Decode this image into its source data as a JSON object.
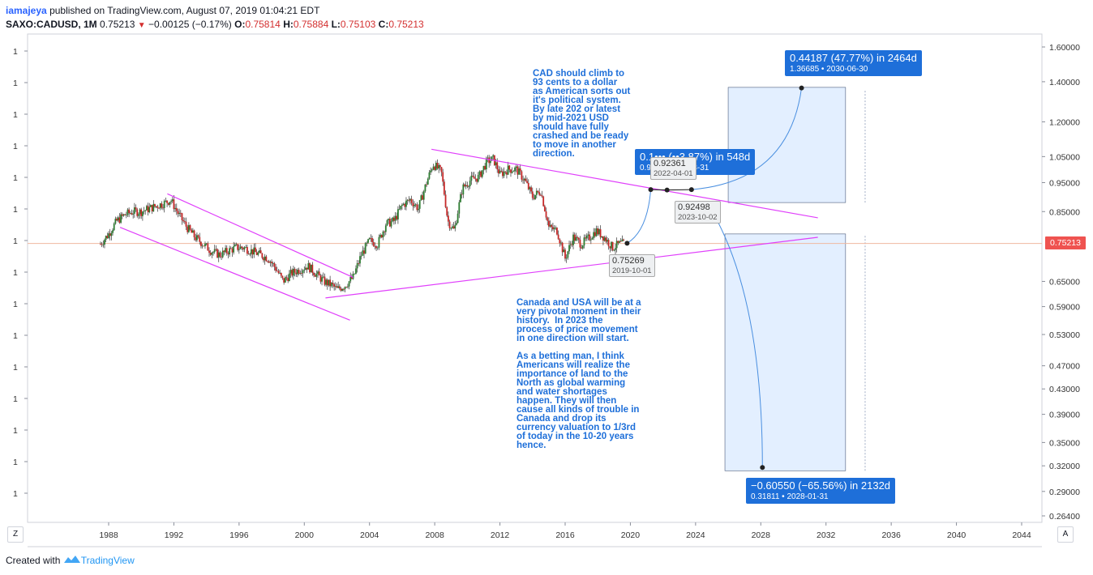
{
  "header": {
    "user": "iamajeya",
    "published": "published on TradingView.com, August 07, 2019 01:04:21 EDT",
    "symbol": "SAXO:CADUSD, 1M",
    "last": "0.75213",
    "change": "−0.00125 (−0.17%)",
    "o_label": "O:",
    "o_value": "0.75814",
    "h_label": "H:",
    "h_value": "0.75884",
    "l_label": "L:",
    "l_value": "0.75103",
    "c_label": "C:",
    "c_value": "0.75213"
  },
  "footer": {
    "created": "Created with",
    "brand": "TradingView"
  },
  "buttons": {
    "z": "Z",
    "a": "A"
  },
  "current_price_tag": "0.75213",
  "notes": {
    "top": "CAD should climb to\n93 cents to a dollar\nas American sorts out\nit's political system.\nBy late 202 or latest\nby mid-2021 USD\nshould have fully\ncrashed and be ready\nto move in another\ndirection.",
    "bottom": "Canada and USA will be at a\nvery pivotal moment in their\nhistory.  In 2023 the\nprocess of price movement\nin one direction will start.\n\nAs a betting man, I think\nAmericans will realize the\nimportance of land to the\nNorth as global warming\nand water shortages\nhappen. They will then\ncause all kinds of trouble in\nCanada and drop its\ncurrency valuation to 1/3rd\nof today in the 10-20 years\nhence."
  },
  "measures": {
    "up_long": {
      "line1": "0.44187 (47.77%) in 2464d",
      "line2": "1.36685  •  2030-06-30"
    },
    "up_short": {
      "line1": "0.1••• (••3.87%) in 548d",
      "line2": "0.9•••••  2021-03-31"
    },
    "down": {
      "line1": "−0.60550 (−65.56%) in 2132d",
      "line2": "0.31811  •  2028-01-31"
    }
  },
  "point_labels": {
    "p1": {
      "value": "0.92361",
      "date": "2022-04-01"
    },
    "p2": {
      "value": "0.92498",
      "date": "2023-10-02"
    },
    "p3": {
      "value": "0.75269",
      "date": "2019-10-01"
    }
  },
  "chart_data": {
    "type": "candlestick",
    "symbol": "SAXO:CADUSD",
    "interval": "1M",
    "y_scale": "log",
    "y_range": [
      0.25,
      1.72
    ],
    "x_range": [
      "1986-01",
      "2045-01"
    ],
    "x_ticks": [
      "1988",
      "1992",
      "1996",
      "2000",
      "2004",
      "2008",
      "2012",
      "2016",
      "2020",
      "2024",
      "2028",
      "2032",
      "2036",
      "2040",
      "2044"
    ],
    "y_ticks": [
      "1.60000",
      "1.40000",
      "1.20000",
      "1.05000",
      "0.95000",
      "0.85000",
      "0.75213",
      "0.65000",
      "0.59000",
      "0.53000",
      "0.47000",
      "0.43000",
      "0.39000",
      "0.35000",
      "0.32000",
      "0.29000",
      "0.26400"
    ],
    "left_axis_labels": [
      "1",
      "1",
      "1",
      "1",
      "1",
      "1",
      "1",
      "1",
      "1",
      "1",
      "1",
      "1",
      "1",
      "1",
      "1"
    ],
    "price_path": [
      {
        "t": 1987.5,
        "p": 0.75
      },
      {
        "t": 1988.0,
        "p": 0.78
      },
      {
        "t": 1988.5,
        "p": 0.82
      },
      {
        "t": 1989.0,
        "p": 0.84
      },
      {
        "t": 1989.5,
        "p": 0.85
      },
      {
        "t": 1990.0,
        "p": 0.85
      },
      {
        "t": 1990.5,
        "p": 0.86
      },
      {
        "t": 1991.0,
        "p": 0.87
      },
      {
        "t": 1991.5,
        "p": 0.88
      },
      {
        "t": 1991.8,
        "p": 0.89
      },
      {
        "t": 1992.3,
        "p": 0.84
      },
      {
        "t": 1992.8,
        "p": 0.8
      },
      {
        "t": 1993.3,
        "p": 0.77
      },
      {
        "t": 1993.8,
        "p": 0.75
      },
      {
        "t": 1994.3,
        "p": 0.73
      },
      {
        "t": 1994.8,
        "p": 0.72
      },
      {
        "t": 1995.3,
        "p": 0.73
      },
      {
        "t": 1995.8,
        "p": 0.74
      },
      {
        "t": 1996.3,
        "p": 0.74
      },
      {
        "t": 1996.8,
        "p": 0.73
      },
      {
        "t": 1997.3,
        "p": 0.72
      },
      {
        "t": 1997.8,
        "p": 0.71
      },
      {
        "t": 1998.3,
        "p": 0.68
      },
      {
        "t": 1998.7,
        "p": 0.65
      },
      {
        "t": 1999.2,
        "p": 0.67
      },
      {
        "t": 1999.7,
        "p": 0.68
      },
      {
        "t": 2000.2,
        "p": 0.69
      },
      {
        "t": 2000.7,
        "p": 0.67
      },
      {
        "t": 2001.2,
        "p": 0.65
      },
      {
        "t": 2001.7,
        "p": 0.64
      },
      {
        "t": 2002.0,
        "p": 0.63
      },
      {
        "t": 2002.5,
        "p": 0.64
      },
      {
        "t": 2003.0,
        "p": 0.66
      },
      {
        "t": 2003.5,
        "p": 0.72
      },
      {
        "t": 2004.0,
        "p": 0.76
      },
      {
        "t": 2004.5,
        "p": 0.75
      },
      {
        "t": 2005.0,
        "p": 0.81
      },
      {
        "t": 2005.5,
        "p": 0.82
      },
      {
        "t": 2006.0,
        "p": 0.87
      },
      {
        "t": 2006.5,
        "p": 0.89
      },
      {
        "t": 2007.0,
        "p": 0.86
      },
      {
        "t": 2007.5,
        "p": 0.95
      },
      {
        "t": 2007.9,
        "p": 1.02
      },
      {
        "t": 2008.4,
        "p": 0.99
      },
      {
        "t": 2008.8,
        "p": 0.82
      },
      {
        "t": 2009.2,
        "p": 0.79
      },
      {
        "t": 2009.7,
        "p": 0.93
      },
      {
        "t": 2010.2,
        "p": 0.96
      },
      {
        "t": 2010.7,
        "p": 0.97
      },
      {
        "t": 2011.2,
        "p": 1.03
      },
      {
        "t": 2011.6,
        "p": 1.04
      },
      {
        "t": 2012.0,
        "p": 0.98
      },
      {
        "t": 2012.5,
        "p": 1.0
      },
      {
        "t": 2013.0,
        "p": 1.0
      },
      {
        "t": 2013.5,
        "p": 0.96
      },
      {
        "t": 2014.0,
        "p": 0.9
      },
      {
        "t": 2014.5,
        "p": 0.92
      },
      {
        "t": 2015.0,
        "p": 0.8
      },
      {
        "t": 2015.5,
        "p": 0.79
      },
      {
        "t": 2016.0,
        "p": 0.71
      },
      {
        "t": 2016.5,
        "p": 0.77
      },
      {
        "t": 2017.0,
        "p": 0.75
      },
      {
        "t": 2017.5,
        "p": 0.77
      },
      {
        "t": 2017.9,
        "p": 0.79
      },
      {
        "t": 2018.4,
        "p": 0.77
      },
      {
        "t": 2018.9,
        "p": 0.74
      },
      {
        "t": 2019.3,
        "p": 0.75
      },
      {
        "t": 2019.6,
        "p": 0.752
      }
    ],
    "annotations": {
      "triangle_upper": [
        {
          "t": 2007.8,
          "p": 1.08
        },
        {
          "t": 2031.5,
          "p": 0.83
        }
      ],
      "triangle_lower": [
        {
          "t": 2001.3,
          "p": 0.61
        },
        {
          "t": 2031.5,
          "p": 0.77
        }
      ],
      "channel_upper": [
        {
          "t": 1991.6,
          "p": 0.91
        },
        {
          "t": 2003.0,
          "p": 0.66
        }
      ],
      "channel_lower": [
        {
          "t": 1988.7,
          "p": 0.8
        },
        {
          "t": 2002.8,
          "p": 0.56
        }
      ],
      "path_points": [
        {
          "t": 2019.8,
          "p": 0.7527
        },
        {
          "t": 2021.25,
          "p": 0.925
        },
        {
          "t": 2022.25,
          "p": 0.9236
        },
        {
          "t": 2023.75,
          "p": 0.925
        },
        {
          "t": 2028.1,
          "p": 0.318
        },
        {
          "t": 2030.5,
          "p": 1.367
        }
      ],
      "range_up": {
        "t0": 2026.0,
        "t1": 2033.2,
        "p0": 0.88,
        "p1": 1.37
      },
      "range_down": {
        "t0": 2025.8,
        "t1": 2033.2,
        "p0": 0.314,
        "p1": 0.78
      }
    },
    "grid": false,
    "legend": "none"
  }
}
